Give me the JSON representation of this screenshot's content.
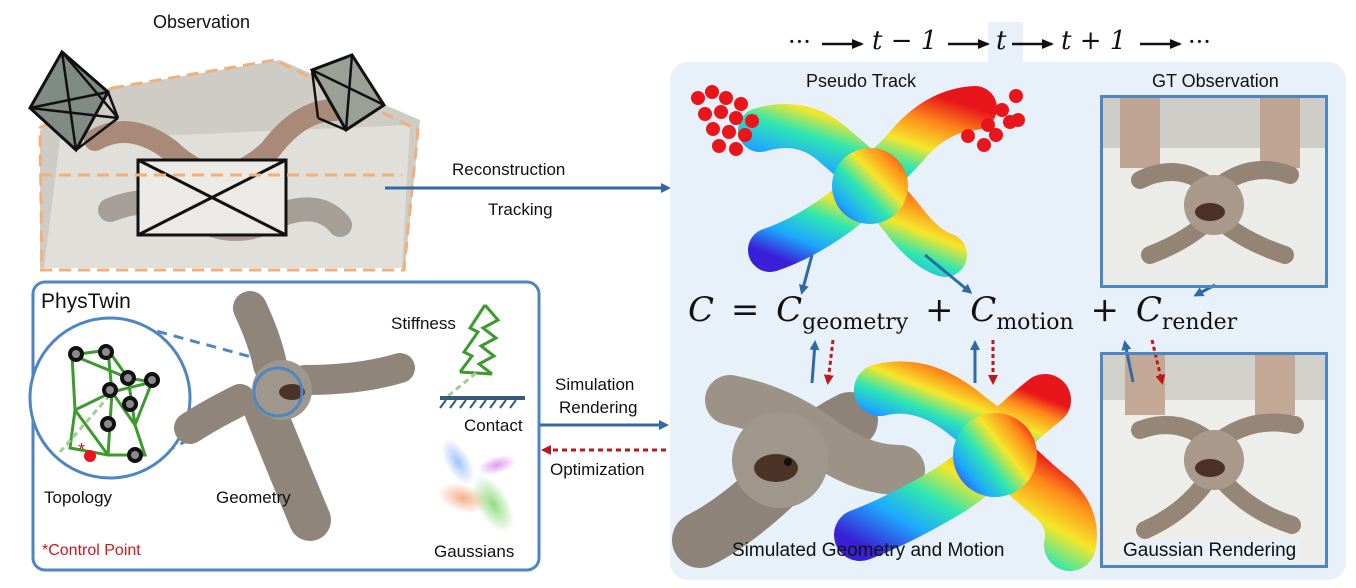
{
  "observation": {
    "title": "Observation"
  },
  "arrows": {
    "reconstruction": "Reconstruction",
    "tracking": "Tracking",
    "simulation": "Simulation",
    "rendering": "Rendering",
    "optimization": "Optimization"
  },
  "timeline": {
    "left_ellipsis": "···",
    "t_minus_1": "t − 1",
    "t": "t",
    "t_plus_1": "t + 1",
    "right_ellipsis": "···"
  },
  "phystwin": {
    "title": "PhysTwin",
    "stiffness": "Stiffness",
    "contact": "Contact",
    "topology": "Topology",
    "geometry": "Geometry",
    "gaussians": "Gaussians",
    "control_point": "*Control Point",
    "control_marker": "*"
  },
  "right_panel": {
    "pseudo_track": "Pseudo Track",
    "gt_observation": "GT Observation",
    "simulated": "Simulated Geometry and Motion",
    "gaussian_rendering": "Gaussian Rendering"
  },
  "equation": {
    "lhs": "C",
    "eq": "=",
    "c1": "C",
    "sub1": "geometry",
    "plus1": "+",
    "c2": "C",
    "sub2": "motion",
    "plus2": "+",
    "c3": "C",
    "sub3": "render"
  },
  "colors": {
    "arrow_blue": "#2f6aa6",
    "panel_border": "#4e86c4",
    "panel_fill": "#e8f0f9",
    "dashed_red": "#c0161b",
    "spring_green": "#3c9a2e",
    "camera_orange": "#f0b07e"
  }
}
